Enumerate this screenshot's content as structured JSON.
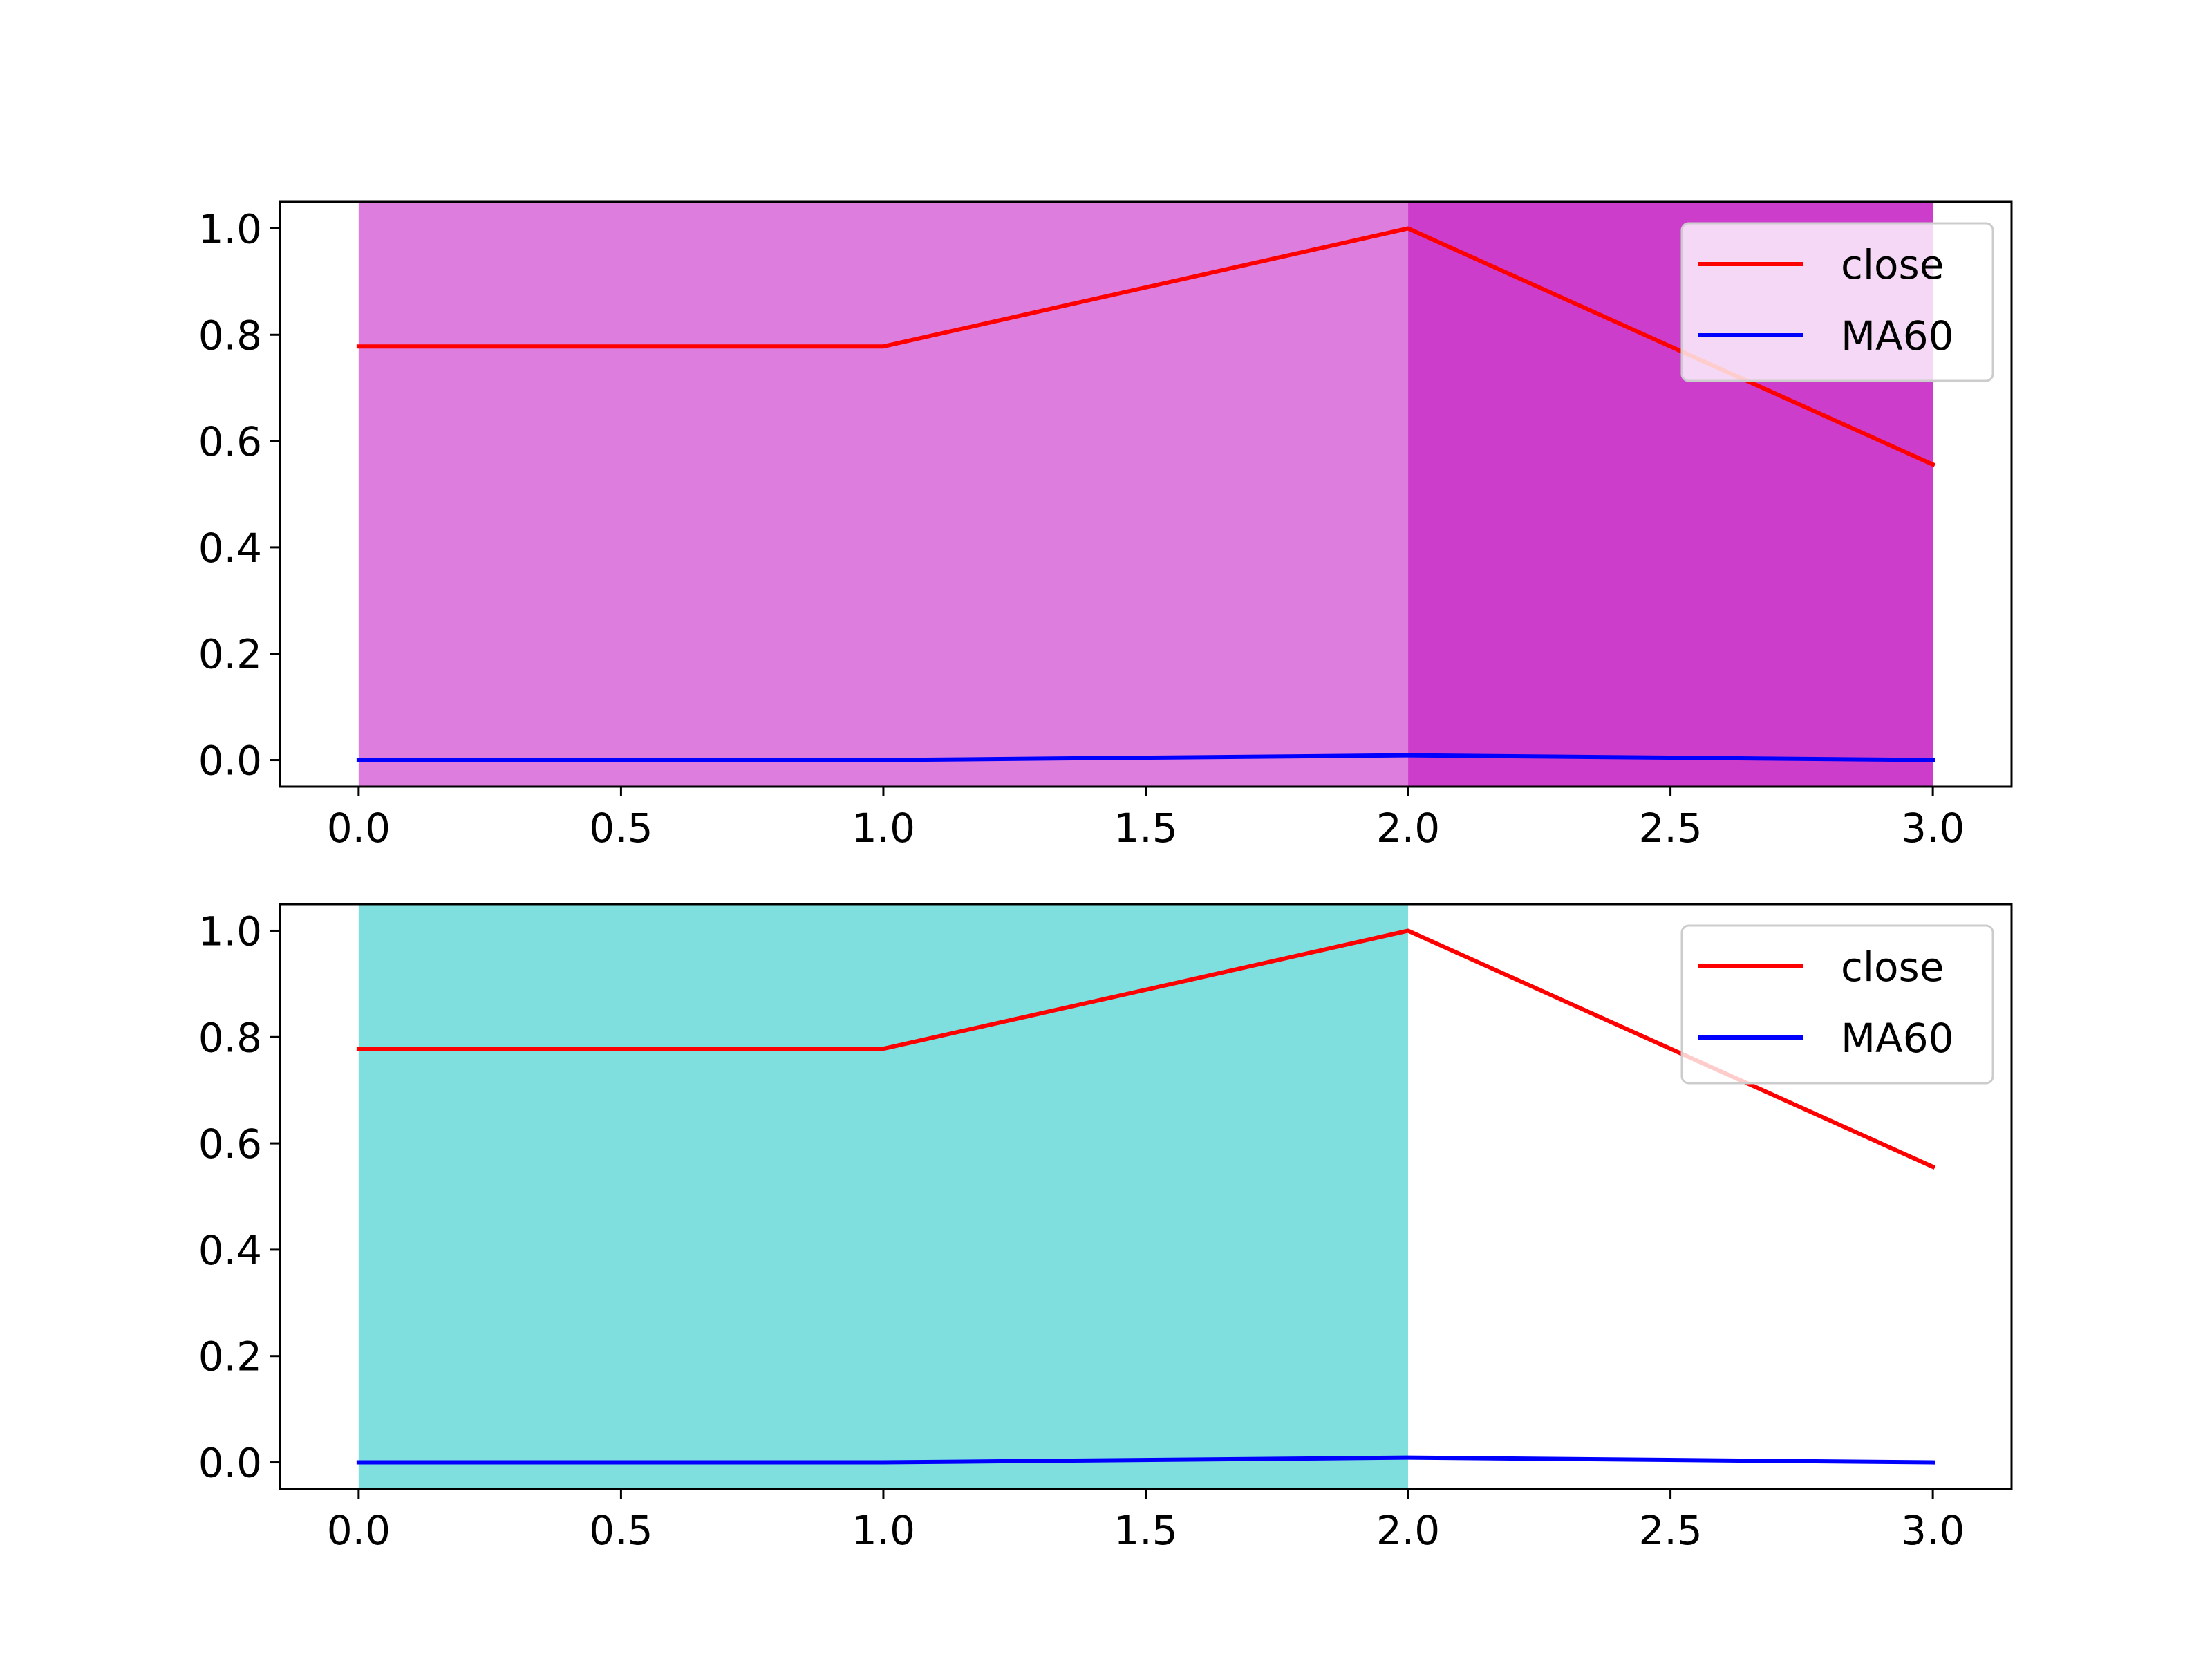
{
  "chart_data": [
    {
      "type": "line",
      "x": [
        0,
        1,
        2,
        3
      ],
      "series": [
        {
          "name": "close",
          "values": [
            0.778,
            0.778,
            1.0,
            0.556
          ],
          "color": "#ff0000"
        },
        {
          "name": "MA60",
          "values": [
            0.0,
            0.0,
            0.009,
            0.0
          ],
          "color": "#0000ff"
        }
      ],
      "shaded_spans": [
        {
          "x_start": 0,
          "x_end": 2,
          "color": "#dd7ddd"
        },
        {
          "x_start": 2,
          "x_end": 3,
          "color": "#cc3dcc"
        }
      ],
      "xlim": [
        -0.15,
        3.15
      ],
      "ylim": [
        -0.05,
        1.05
      ],
      "xticks": [
        0.0,
        0.5,
        1.0,
        1.5,
        2.0,
        2.5,
        3.0
      ],
      "xtick_labels": [
        "0.0",
        "0.5",
        "1.0",
        "1.5",
        "2.0",
        "2.5",
        "3.0"
      ],
      "yticks": [
        0.0,
        0.2,
        0.4,
        0.6,
        0.8,
        1.0
      ],
      "ytick_labels": [
        "0.0",
        "0.2",
        "0.4",
        "0.6",
        "0.8",
        "1.0"
      ],
      "legend": [
        "close",
        "MA60"
      ],
      "legend_position": "top-right",
      "title": "",
      "xlabel": "",
      "ylabel": "",
      "grid": false
    },
    {
      "type": "line",
      "x": [
        0,
        1,
        2,
        3
      ],
      "series": [
        {
          "name": "close",
          "values": [
            0.778,
            0.778,
            1.0,
            0.556
          ],
          "color": "#ff0000"
        },
        {
          "name": "MA60",
          "values": [
            0.0,
            0.0,
            0.009,
            0.0
          ],
          "color": "#0000ff"
        }
      ],
      "shaded_spans": [
        {
          "x_start": 0,
          "x_end": 2,
          "color": "#7fdfdf"
        }
      ],
      "xlim": [
        -0.15,
        3.15
      ],
      "ylim": [
        -0.05,
        1.05
      ],
      "xticks": [
        0.0,
        0.5,
        1.0,
        1.5,
        2.0,
        2.5,
        3.0
      ],
      "xtick_labels": [
        "0.0",
        "0.5",
        "1.0",
        "1.5",
        "2.0",
        "2.5",
        "3.0"
      ],
      "yticks": [
        0.0,
        0.2,
        0.4,
        0.6,
        0.8,
        1.0
      ],
      "ytick_labels": [
        "0.0",
        "0.2",
        "0.4",
        "0.6",
        "0.8",
        "1.0"
      ],
      "legend": [
        "close",
        "MA60"
      ],
      "legend_position": "top-right",
      "title": "",
      "xlabel": "",
      "ylabel": "",
      "grid": false
    }
  ]
}
